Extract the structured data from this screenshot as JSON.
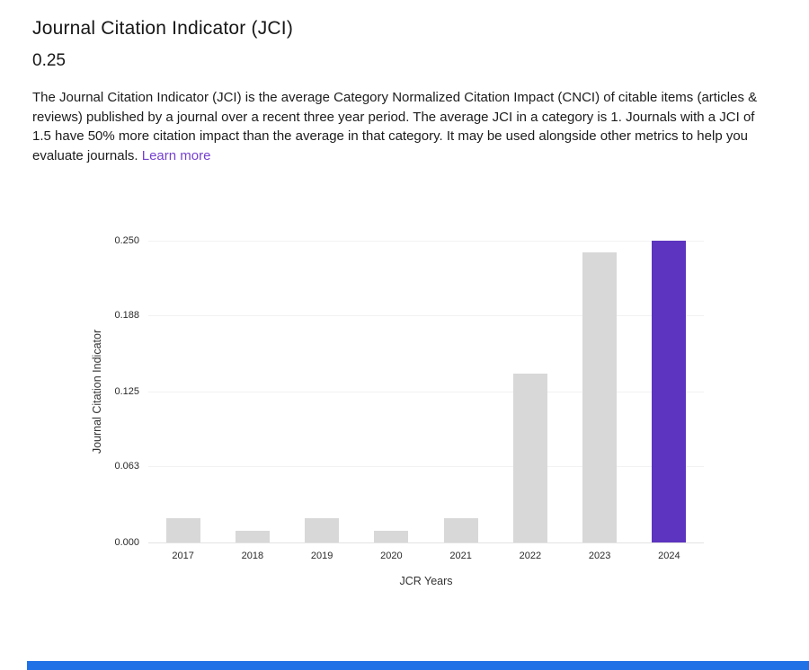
{
  "header": {
    "title": "Journal Citation Indicator (JCI)",
    "value": "0.25",
    "description": "The Journal Citation Indicator (JCI) is the average Category Normalized Citation Impact (CNCI) of citable items (articles & reviews) published by a journal over a recent three year period. The average JCI in a category is 1. Journals with a JCI of 1.5 have 50% more citation impact than the average in that category. It may be used alongside other metrics to help you evaluate journals.",
    "learn_more_label": "Learn more"
  },
  "colors": {
    "bar_default": "#d8d8d8",
    "bar_highlight": "#5c34bf",
    "link": "#7540d0",
    "gridline": "#f2f2f2",
    "axis_line": "#e3e3e3",
    "footer_strip": "#2171e6"
  },
  "chart_data": {
    "type": "bar",
    "title": "",
    "xlabel": "JCR Years",
    "ylabel": "Journal Citation Indicator",
    "categories": [
      "2017",
      "2018",
      "2019",
      "2020",
      "2021",
      "2022",
      "2023",
      "2024"
    ],
    "values": [
      0.02,
      0.01,
      0.02,
      0.01,
      0.02,
      0.14,
      0.24,
      0.25
    ],
    "highlight_category": "2024",
    "ylim": [
      0,
      0.25
    ],
    "ytick_labels": [
      "0.250",
      "0.188",
      "0.125",
      "0.063",
      "0.000"
    ],
    "ytick_values": [
      0.25,
      0.188,
      0.125,
      0.063,
      0
    ],
    "grid": true,
    "legend": false
  }
}
